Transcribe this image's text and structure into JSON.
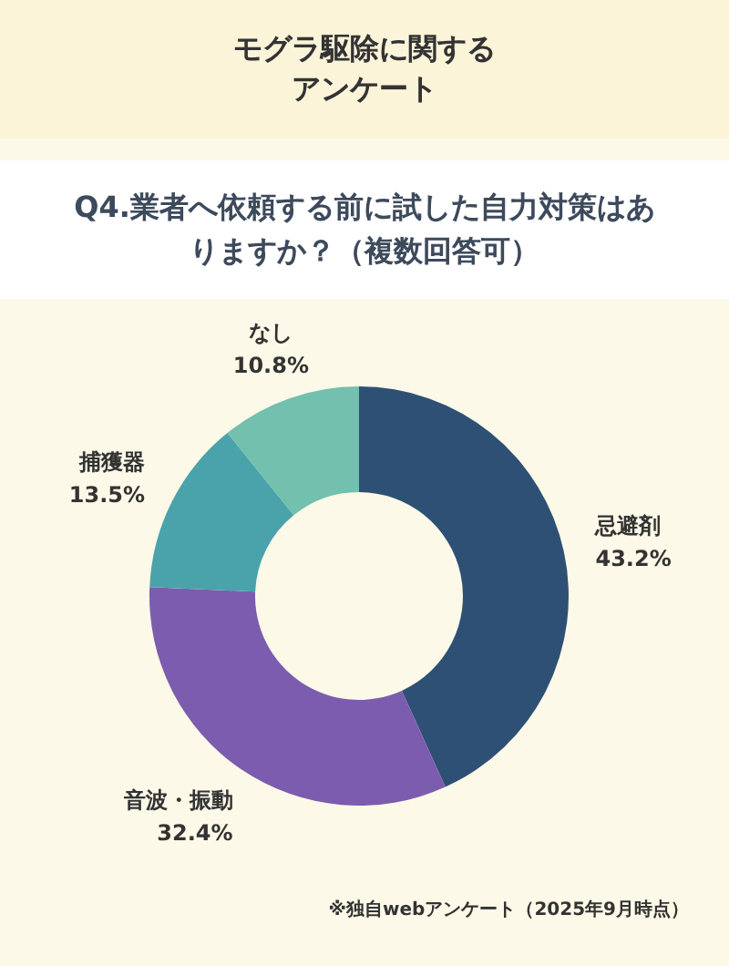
{
  "chart_data": {
    "type": "donut",
    "title": "モグラ駆除に関するアンケート",
    "subtitle": "Q4.業者へ依頼する前に試した自力対策はありますか？（複数回答可）",
    "categories": [
      "忌避剤",
      "音波・振動",
      "捕獲器",
      "なし"
    ],
    "values": [
      43.2,
      32.4,
      13.5,
      10.8
    ],
    "value_labels": [
      "43.2%",
      "32.4%",
      "13.5%",
      "10.8%"
    ],
    "colors": [
      "#2e5074",
      "#7c5cae",
      "#4aa3aa",
      "#72c0ad"
    ],
    "annotations": [
      "※独自webアンケート（2025年9月時点）"
    ]
  }
}
